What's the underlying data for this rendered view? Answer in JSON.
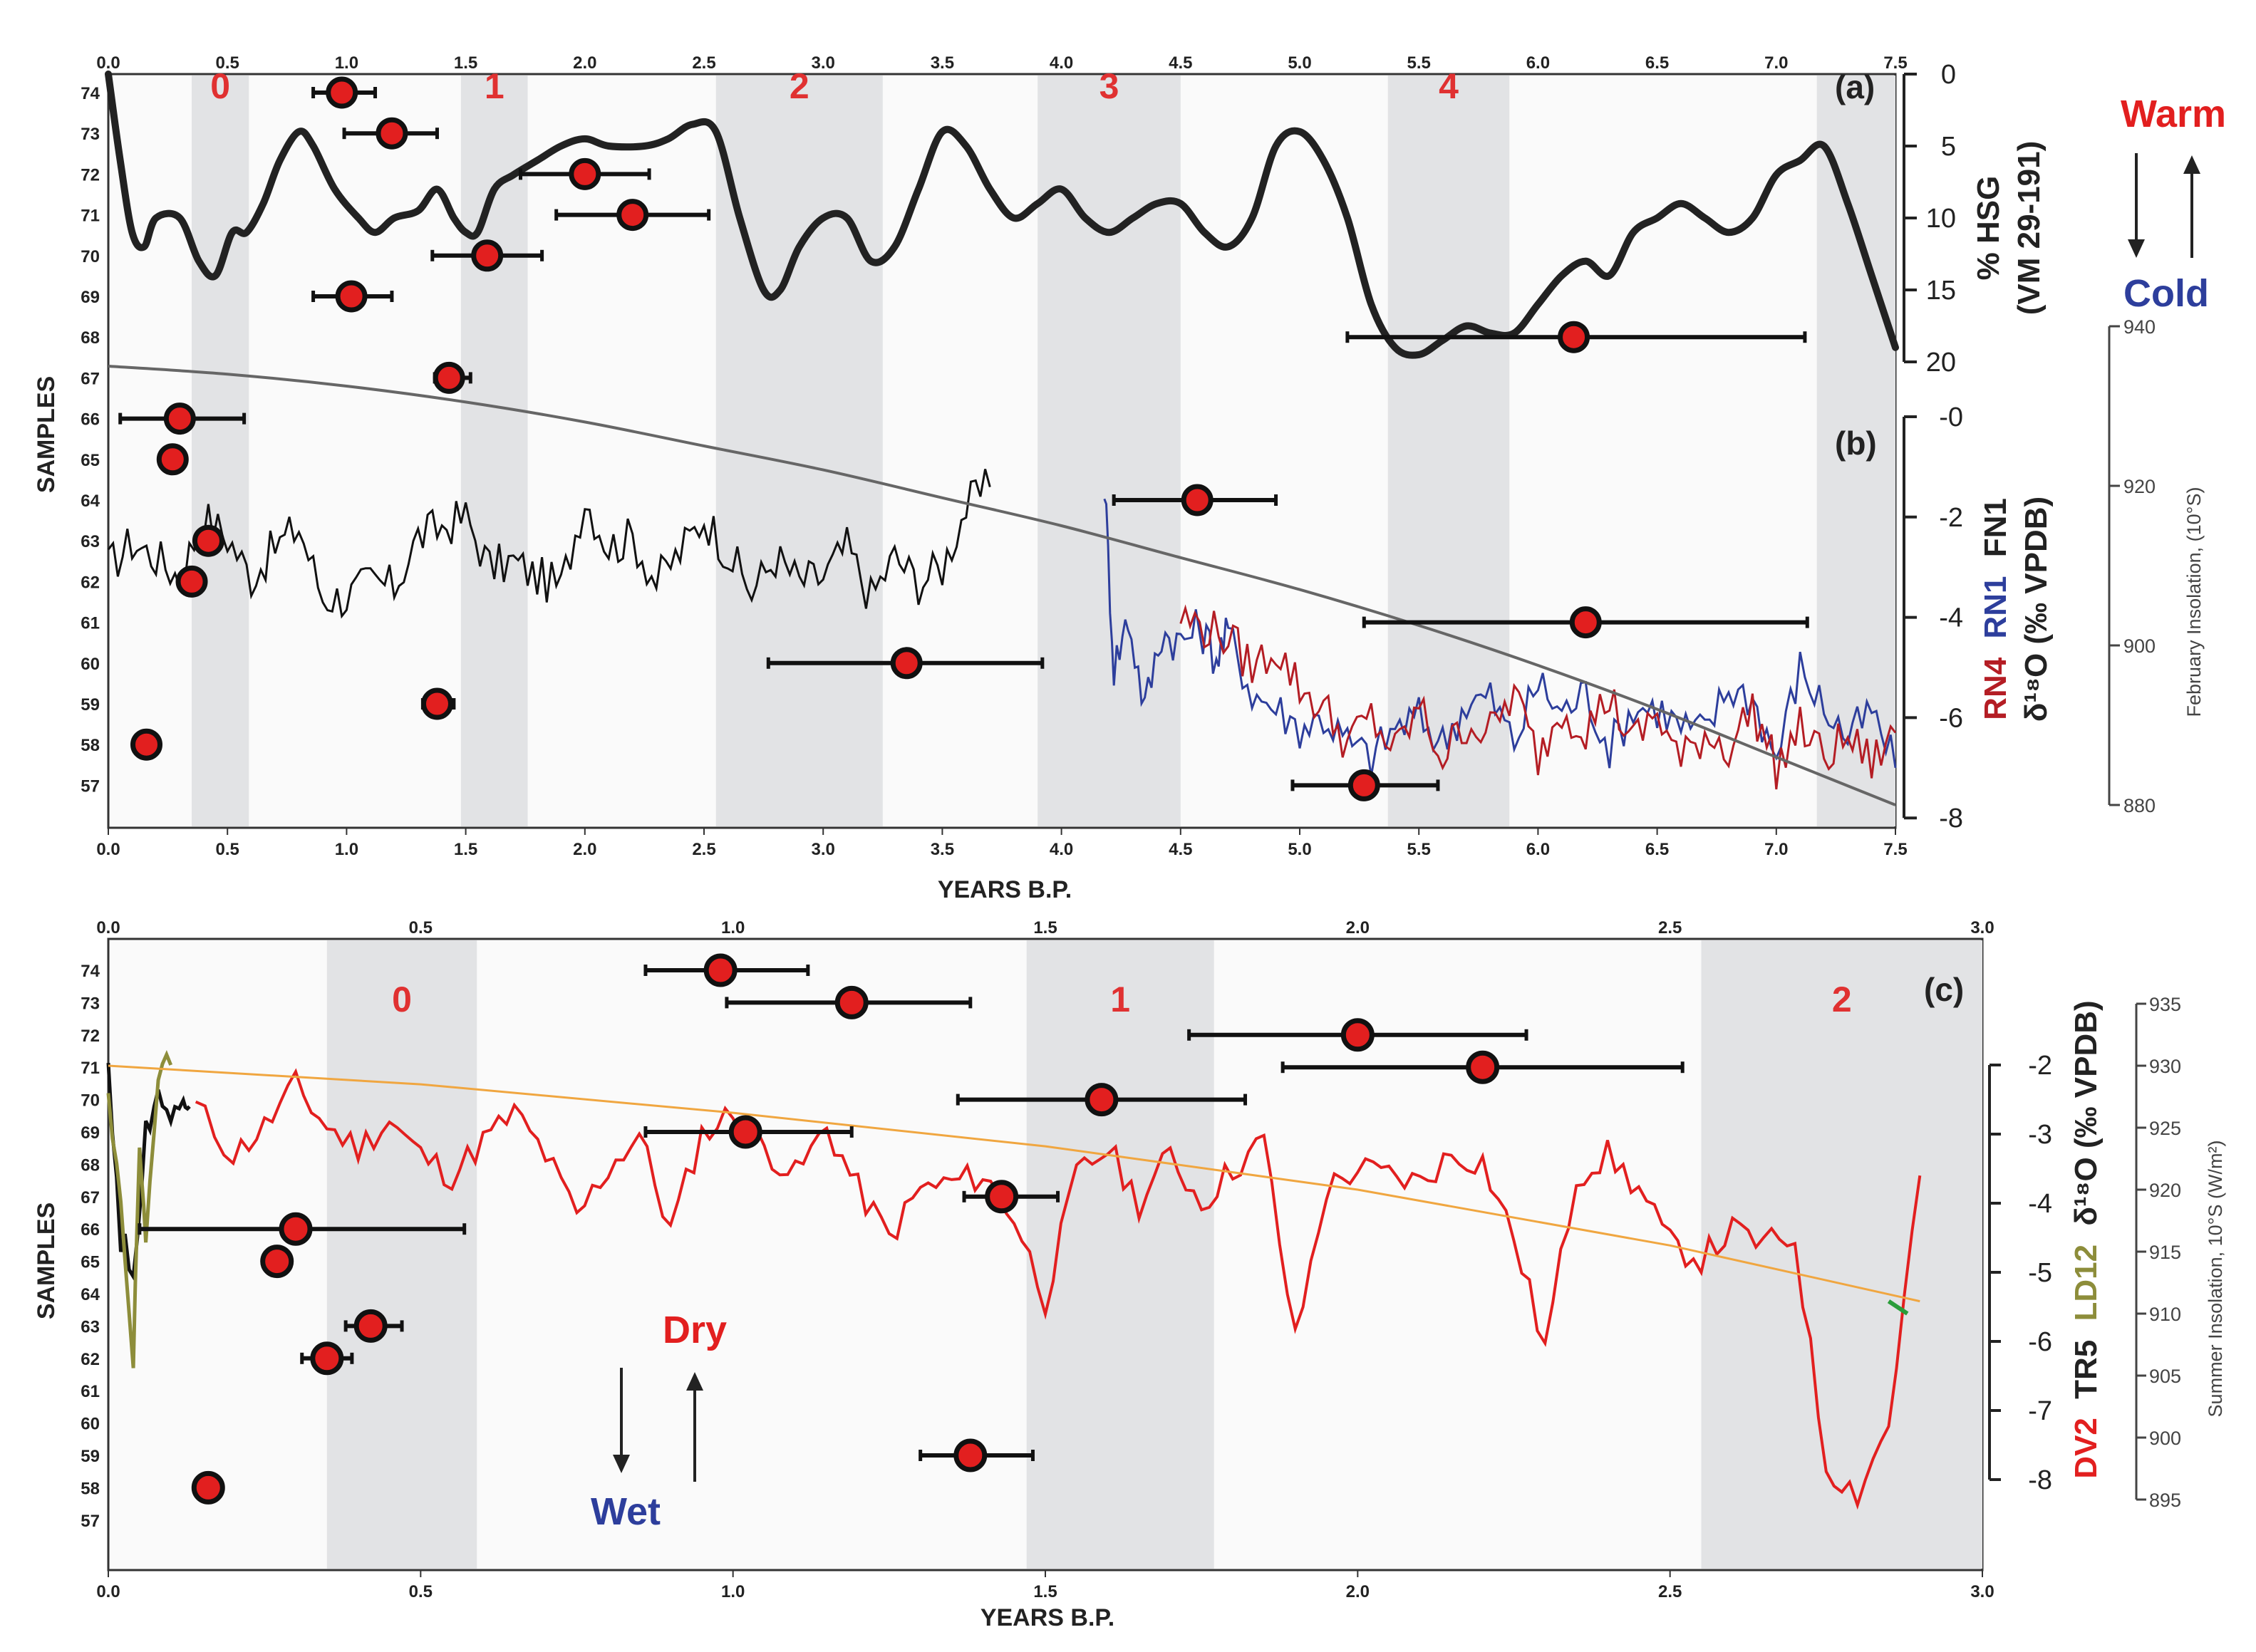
{
  "colors": {
    "red": "#e21f1f",
    "dark_red": "#b41d24",
    "blue": "#2d3e9c",
    "olive": "#8d8d3a",
    "grey": "#666666",
    "shade": "#e2e3e5",
    "orange": "#f0a640",
    "green": "#2a9d3a"
  },
  "labels": {
    "years_bp": "YEARS B.P.",
    "samples": "SAMPLES",
    "panel_a": "(a)",
    "panel_b": "(b)",
    "panel_c": "(c)",
    "warm": "Warm",
    "cold": "Cold",
    "dry": "Dry",
    "wet": "Wet",
    "hsg_line1": "% HSG",
    "hsg_line2": "(VM 29-191)",
    "b_rn4": "RN4",
    "b_rn1": "RN1",
    "b_fn1": "FN1",
    "b_units": "δ¹⁸O (‰ VPDB)",
    "c_dv2": "DV2",
    "c_tr5": "TR5",
    "c_ld12": "LD12",
    "c_units": "δ¹⁸O (‰ VPDB)",
    "feb_insolation": "February Insolation, (10°S)",
    "summer_insolation": "Summer Insolation, 10°S (W/m²)",
    "ticks_75": [
      "0.0",
      "0.5",
      "1.0",
      "1.5",
      "2.0",
      "2.5",
      "3.0",
      "3.5",
      "4.0",
      "4.5",
      "5.0",
      "5.5",
      "6.0",
      "6.5",
      "7.0",
      "7.5"
    ],
    "ticks_30": [
      "0.0",
      "0.5",
      "1.0",
      "1.5",
      "2.0",
      "2.5",
      "3.0"
    ],
    "samples_ticks": [
      "74",
      "73",
      "72",
      "71",
      "70",
      "69",
      "68",
      "67",
      "66",
      "65",
      "64",
      "63",
      "62",
      "61",
      "60",
      "59",
      "58",
      "57"
    ],
    "hsg_ticks": [
      "0",
      "5",
      "10",
      "15",
      "20"
    ],
    "b_d18o_ticks": [
      "-0",
      "-2",
      "-4",
      "-6",
      "-8"
    ],
    "feb_ins_ticks": [
      "940",
      "920",
      "900",
      "880"
    ],
    "c_d18o_ticks": [
      "-2",
      "-3",
      "-4",
      "-5",
      "-6",
      "-7",
      "-8"
    ],
    "summer_ins_ticks": [
      "935",
      "930",
      "925",
      "920",
      "915",
      "910",
      "905",
      "900",
      "895"
    ]
  },
  "chart_data": [
    {
      "panel": "a",
      "type": "line",
      "title": "",
      "xlabel": "YEARS B.P.",
      "xlim": [
        0,
        7.5
      ],
      "ylabel_left": "SAMPLES",
      "ylabel_right": "% HSG (VM 29-191)",
      "ylim_right": [
        0,
        20
      ],
      "right_axis_inverted": true,
      "shaded_zones": [
        {
          "label": "0",
          "from": 0.35,
          "to": 0.59
        },
        {
          "label": "1",
          "from": 1.48,
          "to": 1.76
        },
        {
          "label": "2",
          "from": 2.55,
          "to": 3.25
        },
        {
          "label": "3",
          "from": 3.9,
          "to": 4.5
        },
        {
          "label": "4",
          "from": 5.37,
          "to": 5.88
        },
        {
          "label": "",
          "from": 7.17,
          "to": 7.5
        }
      ],
      "series": [
        {
          "name": "% HSG (VM 29-191)",
          "color": "#222222",
          "x": [
            0,
            0.05,
            0.1,
            0.15,
            0.2,
            0.3,
            0.38,
            0.45,
            0.52,
            0.58,
            0.65,
            0.72,
            0.8,
            0.86,
            0.95,
            1.05,
            1.12,
            1.2,
            1.3,
            1.38,
            1.45,
            1.5,
            1.55,
            1.62,
            1.7,
            1.8,
            1.9,
            2.0,
            2.1,
            2.25,
            2.35,
            2.45,
            2.55,
            2.65,
            2.75,
            2.82,
            2.9,
            3.0,
            3.1,
            3.2,
            3.3,
            3.4,
            3.5,
            3.6,
            3.7,
            3.8,
            3.9,
            4.0,
            4.1,
            4.2,
            4.3,
            4.4,
            4.5,
            4.6,
            4.7,
            4.8,
            4.9,
            5.0,
            5.1,
            5.2,
            5.3,
            5.4,
            5.5,
            5.6,
            5.7,
            5.8,
            5.9,
            6.0,
            6.1,
            6.2,
            6.3,
            6.4,
            6.5,
            6.6,
            6.7,
            6.8,
            6.9,
            7.0,
            7.1,
            7.2,
            7.3,
            7.4,
            7.5
          ],
          "y": [
            0,
            6,
            11,
            12,
            10,
            10,
            13,
            14,
            11,
            11,
            9,
            6,
            4,
            5,
            8,
            10,
            11,
            10,
            9.5,
            8,
            10,
            11,
            11,
            8,
            7,
            6,
            5,
            4.5,
            5,
            5,
            4.5,
            3.5,
            4,
            10,
            15,
            15,
            12,
            10,
            10,
            13,
            12,
            8,
            4,
            5,
            8,
            10,
            9,
            8,
            10,
            11,
            10,
            9,
            9,
            11,
            12,
            10,
            5,
            4,
            6,
            10,
            16,
            19,
            19.5,
            18.5,
            17.5,
            18,
            18,
            16,
            14,
            13,
            14,
            11,
            10,
            9,
            10,
            11,
            10,
            7,
            6,
            5,
            9,
            14,
            19
          ]
        }
      ],
      "samples": [
        {
          "id": 74,
          "age": 0.98,
          "err_low": 0.86,
          "err_high": 1.12
        },
        {
          "id": 73,
          "age": 1.19,
          "err_low": 0.99,
          "err_high": 1.38
        },
        {
          "id": 72,
          "age": 2.0,
          "err_low": 1.73,
          "err_high": 2.27
        },
        {
          "id": 71,
          "age": 2.2,
          "err_low": 1.88,
          "err_high": 2.52
        },
        {
          "id": 70,
          "age": 1.59,
          "err_low": 1.36,
          "err_high": 1.82
        },
        {
          "id": 69,
          "age": 1.02,
          "err_low": 0.86,
          "err_high": 1.19
        },
        {
          "id": 68,
          "age": 6.15,
          "err_low": 5.2,
          "err_high": 7.12
        },
        {
          "id": 67,
          "age": 1.43,
          "err_low": 1.37,
          "err_high": 1.52
        },
        {
          "id": 66,
          "age": 0.3,
          "err_low": 0.05,
          "err_high": 0.57
        },
        {
          "id": 65,
          "age": 0.27,
          "err_low": 0.27,
          "err_high": 0.27
        },
        {
          "id": 64,
          "age": 4.57,
          "err_low": 4.22,
          "err_high": 4.9
        },
        {
          "id": 63,
          "age": 0.42,
          "err_low": 0.42,
          "err_high": 0.42
        },
        {
          "id": 62,
          "age": 0.35,
          "err_low": 0.35,
          "err_high": 0.35
        },
        {
          "id": 61,
          "age": 6.2,
          "err_low": 5.27,
          "err_high": 7.13
        },
        {
          "id": 60,
          "age": 3.35,
          "err_low": 2.77,
          "err_high": 3.92
        },
        {
          "id": 59,
          "age": 1.38,
          "err_low": 1.32,
          "err_high": 1.45
        },
        {
          "id": 58,
          "age": 0.16,
          "err_low": 0.16,
          "err_high": 0.16
        },
        {
          "id": 57,
          "age": 5.27,
          "err_low": 4.97,
          "err_high": 5.58
        }
      ]
    },
    {
      "panel": "b",
      "type": "line",
      "title": "",
      "xlabel": "YEARS B.P.",
      "xlim": [
        0,
        7.5
      ],
      "ylabel_left": "SAMPLES",
      "ylabel_right": "RN4 RN1 FN1 δ18O (‰ VPDB)",
      "ylim_right": [
        -8,
        0
      ],
      "ylabel_far_right": "February Insolation, (10°S)",
      "ylim_far_right": [
        880,
        940
      ],
      "series": [
        {
          "name": "FN1",
          "color": "#111111",
          "x": [
            0,
            0.1,
            0.2,
            0.3,
            0.4,
            0.5,
            0.6,
            0.7,
            0.8,
            0.9,
            1.0,
            1.1,
            1.2,
            1.3,
            1.4,
            1.5,
            1.6,
            1.7,
            1.8,
            1.9,
            2.0,
            2.1,
            2.2,
            2.3,
            2.4,
            2.5,
            2.6,
            2.7,
            2.8,
            2.9,
            3.0,
            3.1,
            3.2,
            3.3,
            3.4,
            3.5,
            3.6,
            3.7
          ],
          "y": [
            -3,
            -2.5,
            -2.8,
            -3.2,
            -2,
            -2.4,
            -3.2,
            -2.6,
            -2.2,
            -3.6,
            -3.6,
            -3.3,
            -3.4,
            -2.4,
            -2.2,
            -2,
            -3,
            -2.9,
            -3.2,
            -3.4,
            -1.6,
            -2.6,
            -2.4,
            -3.3,
            -2.7,
            -2,
            -2.7,
            -3.5,
            -2.8,
            -3.3,
            -3.2,
            -2.6,
            -3.6,
            -2.8,
            -3.3,
            -3,
            -1.8,
            -1.4
          ]
        },
        {
          "name": "RN1",
          "color": "#2d3e9c",
          "x": [
            4.18,
            4.22,
            4.28,
            4.35,
            4.42,
            4.5,
            4.58,
            4.65,
            4.7,
            4.8,
            4.9,
            5.0,
            5.1,
            5.2,
            5.3,
            5.4,
            5.5,
            5.6,
            5.7,
            5.8,
            5.9,
            6.0,
            6.1,
            6.2,
            6.3,
            6.4,
            6.5,
            6.6,
            6.7,
            6.8,
            6.9,
            7.0,
            7.1,
            7.2,
            7.3,
            7.4,
            7.5
          ],
          "y": [
            -1.3,
            -5,
            -4,
            -5.8,
            -4.3,
            -4.5,
            -4.2,
            -4.8,
            -4.3,
            -5.5,
            -5.8,
            -6.2,
            -6,
            -6.5,
            -6.8,
            -6.2,
            -6,
            -6.5,
            -5.7,
            -5.6,
            -6.5,
            -5.3,
            -5.9,
            -5.5,
            -6.6,
            -5.8,
            -5.8,
            -6.2,
            -6.3,
            -5.4,
            -5.6,
            -6.8,
            -5,
            -5.8,
            -6.4,
            -5.9,
            -7
          ]
        },
        {
          "name": "RN4",
          "color": "#b41d24",
          "x": [
            4.5,
            4.6,
            4.7,
            4.8,
            4.9,
            5.0,
            5.1,
            5.2,
            5.3,
            5.4,
            5.5,
            5.6,
            5.7,
            5.8,
            5.9,
            6.0,
            6.1,
            6.2,
            6.3,
            6.4,
            6.5,
            6.6,
            6.7,
            6.8,
            6.9,
            7.0,
            7.1,
            7.2,
            7.3,
            7.4,
            7.5
          ],
          "y": [
            -4,
            -4.2,
            -4.4,
            -5,
            -4.6,
            -5.4,
            -5.8,
            -6.5,
            -6,
            -6.7,
            -5.8,
            -6.8,
            -6.1,
            -6.3,
            -5.5,
            -6.8,
            -5.8,
            -6.2,
            -5.6,
            -6.5,
            -5.9,
            -6.9,
            -6.3,
            -6.6,
            -5.8,
            -7,
            -6.2,
            -6.8,
            -6.4,
            -6.9,
            -6.3
          ]
        },
        {
          "name": "February Insolation, (10°S)",
          "color": "#666666",
          "axis": "far_right",
          "x": [
            0,
            0.5,
            1,
            1.5,
            2,
            2.5,
            3,
            3.5,
            4,
            4.5,
            5,
            5.5,
            6,
            6.5,
            7,
            7.5
          ],
          "y": [
            935,
            934,
            932.5,
            930.5,
            928,
            925,
            922,
            918.5,
            915,
            911,
            907,
            902.5,
            897.5,
            892,
            886,
            880
          ]
        }
      ]
    },
    {
      "panel": "c",
      "type": "line",
      "title": "",
      "xlabel": "YEARS B.P.",
      "xlim": [
        0,
        3.0
      ],
      "ylabel_left": "SAMPLES",
      "ylabel_right": "DV2 TR5 LD12 δ18O (‰ VPDB)",
      "ylim_right": [
        -8,
        -2
      ],
      "ylabel_far_right": "Summer Insolation, 10°S (W/m²)",
      "ylim_far_right": [
        895,
        935
      ],
      "shaded_zones": [
        {
          "label": "0",
          "from": 0.35,
          "to": 0.59
        },
        {
          "label": "1",
          "from": 1.47,
          "to": 1.77
        },
        {
          "label": "2",
          "from": 2.55,
          "to": 3.0
        }
      ],
      "series": [
        {
          "name": "DV2",
          "color": "#e21f1f",
          "x": [
            0.14,
            0.2,
            0.25,
            0.3,
            0.35,
            0.4,
            0.45,
            0.5,
            0.55,
            0.6,
            0.65,
            0.7,
            0.75,
            0.8,
            0.85,
            0.9,
            0.95,
            1.0,
            1.05,
            1.1,
            1.15,
            1.2,
            1.25,
            1.3,
            1.35,
            1.4,
            1.45,
            1.5,
            1.55,
            1.6,
            1.65,
            1.7,
            1.75,
            1.8,
            1.85,
            1.9,
            1.95,
            2.0,
            2.05,
            2.1,
            2.15,
            2.2,
            2.25,
            2.3,
            2.35,
            2.4,
            2.45,
            2.5,
            2.55,
            2.6,
            2.65,
            2.7,
            2.75,
            2.8,
            2.85,
            2.9
          ],
          "y": [
            -2.6,
            -3.3,
            -2.9,
            -2.3,
            -2.9,
            -3.2,
            -2.8,
            -3.3,
            -3.6,
            -3.1,
            -2.7,
            -3.3,
            -4.2,
            -3.5,
            -3,
            -4.4,
            -3,
            -2.7,
            -3.2,
            -3.6,
            -2.9,
            -3.8,
            -4.5,
            -3.8,
            -3.7,
            -3.6,
            -4.2,
            -5.4,
            -3.6,
            -3.2,
            -4,
            -3.3,
            -4,
            -3.5,
            -3.1,
            -6,
            -3.8,
            -3.5,
            -3.6,
            -3.7,
            -3.3,
            -3.4,
            -4.5,
            -6.1,
            -3.6,
            -3.3,
            -3.8,
            -4.6,
            -4.8,
            -4.4,
            -4.6,
            -4.5,
            -7.8,
            -8.2,
            -7.2,
            -3.6
          ]
        },
        {
          "name": "TR5",
          "color": "#111111",
          "x": [
            0.0,
            0.02,
            0.04,
            0.06,
            0.08,
            0.1,
            0.12,
            0.13
          ],
          "y": [
            -2,
            -4.5,
            -5,
            -3,
            -2.2,
            -2.8,
            -2.4,
            -2.6
          ]
        },
        {
          "name": "LD12",
          "color": "#8d8d3a",
          "x": [
            0.0,
            0.02,
            0.04,
            0.05,
            0.06,
            0.08,
            0.1
          ],
          "y": [
            -2.4,
            -4.2,
            -6.4,
            -3.2,
            -4.5,
            -2.2,
            -2
          ]
        },
        {
          "name": "Summer Insolation, 10°S",
          "color": "#f0a640",
          "axis": "far_right",
          "x": [
            0,
            0.5,
            1,
            1.5,
            2,
            2.5,
            2.9
          ],
          "y": [
            930,
            928.5,
            926.2,
            923.5,
            920,
            915.5,
            911
          ]
        }
      ],
      "samples": [
        {
          "id": 74,
          "age": 0.98,
          "err_low": 0.86,
          "err_high": 1.12
        },
        {
          "id": 73,
          "age": 1.19,
          "err_low": 0.99,
          "err_high": 1.38
        },
        {
          "id": 72,
          "age": 2.0,
          "err_low": 1.73,
          "err_high": 2.27
        },
        {
          "id": 71,
          "age": 2.2,
          "err_low": 1.88,
          "err_high": 2.52
        },
        {
          "id": 70,
          "age": 1.59,
          "err_low": 1.36,
          "err_high": 1.82
        },
        {
          "id": 69,
          "age": 1.02,
          "err_low": 0.86,
          "err_high": 1.19
        },
        {
          "id": 67,
          "age": 1.43,
          "err_low": 1.37,
          "err_high": 1.52
        },
        {
          "id": 66,
          "age": 0.3,
          "err_low": 0.05,
          "err_high": 0.57
        },
        {
          "id": 65,
          "age": 0.27,
          "err_low": 0.27,
          "err_high": 0.27
        },
        {
          "id": 63,
          "age": 0.42,
          "err_low": 0.38,
          "err_high": 0.47
        },
        {
          "id": 62,
          "age": 0.35,
          "err_low": 0.31,
          "err_high": 0.39
        },
        {
          "id": 59,
          "age": 1.38,
          "err_low": 1.3,
          "err_high": 1.48
        },
        {
          "id": 58,
          "age": 0.16,
          "err_low": 0.16,
          "err_high": 0.16
        }
      ]
    }
  ]
}
